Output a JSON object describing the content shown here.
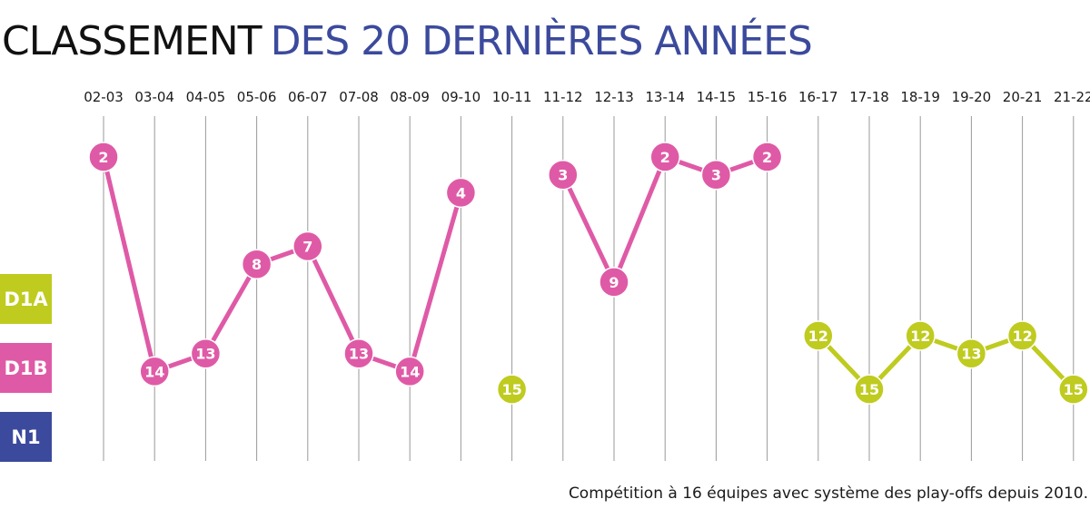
{
  "title": {
    "part1": "CLASSEMENT",
    "part2": "DES 20 DERNIÈRES ANNÉES"
  },
  "footnote": "Compétition à 16 équipes avec système des play-offs depuis 2010.",
  "colors": {
    "title_dark": "#111111",
    "title_accent": "#3b4a9c",
    "D1A": "#bfcb1f",
    "D1B": "#df5aa6",
    "N1": "#3b4a9c",
    "gridline": "#9a9a9a"
  },
  "divisions": [
    {
      "key": "D1A",
      "label": "D1A"
    },
    {
      "key": "D1B",
      "label": "D1B"
    },
    {
      "key": "N1",
      "label": "N1"
    }
  ],
  "chart_data": {
    "type": "line",
    "title": "CLASSEMENT DES 20 DERNIÈRES ANNÉES",
    "categories": [
      "02-03",
      "03-04",
      "04-05",
      "05-06",
      "06-07",
      "07-08",
      "08-09",
      "09-10",
      "10-11",
      "11-12",
      "12-13",
      "13-14",
      "14-15",
      "15-16",
      "16-17",
      "17-18",
      "18-19",
      "19-20",
      "20-21",
      "21-22"
    ],
    "rank": [
      2,
      14,
      13,
      8,
      7,
      13,
      14,
      4,
      15,
      3,
      9,
      2,
      3,
      2,
      12,
      15,
      12,
      13,
      12,
      15
    ],
    "division": [
      "D1B",
      "D1B",
      "D1B",
      "D1B",
      "D1B",
      "D1B",
      "D1B",
      "D1B",
      "D1A",
      "D1B",
      "D1B",
      "D1B",
      "D1B",
      "D1B",
      "D1A",
      "D1A",
      "D1A",
      "D1A",
      "D1A",
      "D1A"
    ],
    "segments": [
      {
        "division": "D1B",
        "from": 0,
        "to": 7
      },
      {
        "division": "D1A",
        "from": 8,
        "to": 8
      },
      {
        "division": "D1B",
        "from": 9,
        "to": 13
      },
      {
        "division": "D1A",
        "from": 14,
        "to": 19
      }
    ],
    "legend_placement": "left",
    "grid": true
  }
}
